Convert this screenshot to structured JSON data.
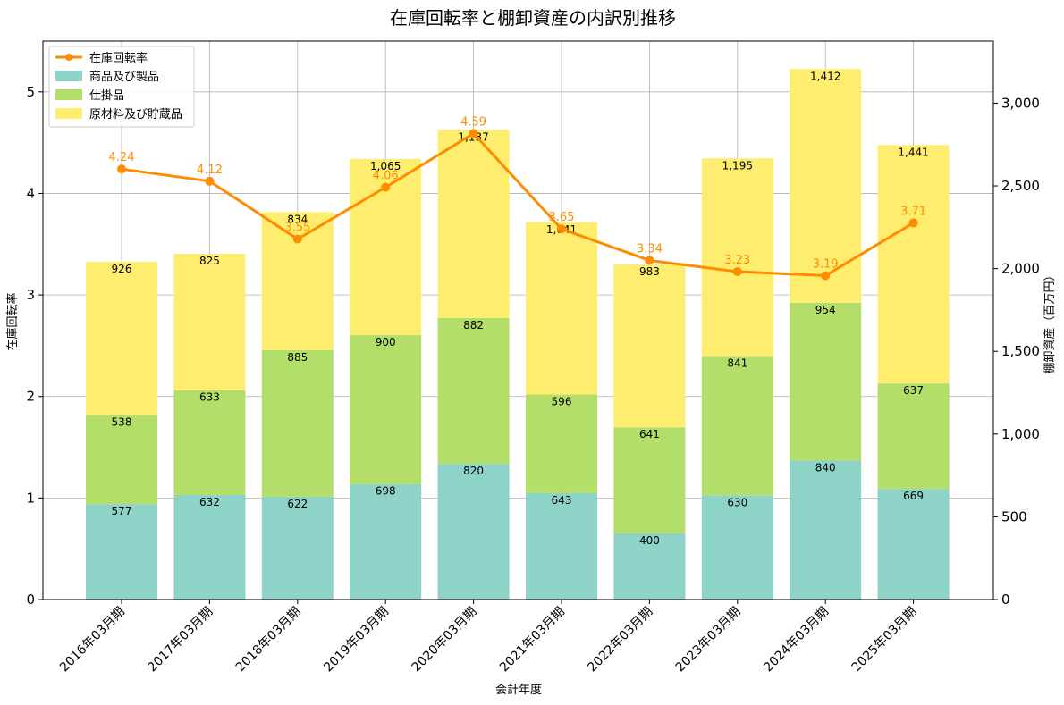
{
  "chart_data": {
    "type": "bar",
    "title": "在庫回転率と棚卸資産の内訳別推移",
    "xlabel": "会計年度",
    "ylabel_left": "在庫回転率",
    "ylabel_right": "棚卸資産（百万円）",
    "y_left_range": [
      0,
      5.5
    ],
    "y_right_range": [
      0,
      3375
    ],
    "y_left_ticks": [
      "0",
      "1",
      "2",
      "3",
      "4",
      "5"
    ],
    "y_right_ticks": [
      "0",
      "500",
      "1,000",
      "1,500",
      "2,000",
      "2,500",
      "3,000"
    ],
    "grid": true,
    "legend_position": "top-left",
    "categories": [
      "2016年03月期",
      "2017年03月期",
      "2018年03月期",
      "2019年03月期",
      "2020年03月期",
      "2021年03月期",
      "2022年03月期",
      "2023年03月期",
      "2024年03月期",
      "2025年03月期"
    ],
    "bar_series": [
      {
        "name": "商品及び製品",
        "color": "#8dd3c7",
        "values": [
          577,
          632,
          622,
          698,
          820,
          643,
          400,
          630,
          840,
          669
        ]
      },
      {
        "name": "仕掛品",
        "color": "#b3de69",
        "values": [
          538,
          633,
          885,
          900,
          882,
          596,
          641,
          841,
          954,
          637
        ]
      },
      {
        "name": "原材料及び貯蔵品",
        "color": "#ffed6f",
        "values": [
          926,
          825,
          834,
          1065,
          1137,
          1041,
          983,
          1195,
          1412,
          1441
        ]
      }
    ],
    "line_series": {
      "name": "在庫回転率",
      "color": "#ff8c00",
      "values": [
        4.24,
        4.12,
        3.55,
        4.06,
        4.59,
        3.65,
        3.34,
        3.23,
        3.19,
        3.71
      ]
    }
  }
}
